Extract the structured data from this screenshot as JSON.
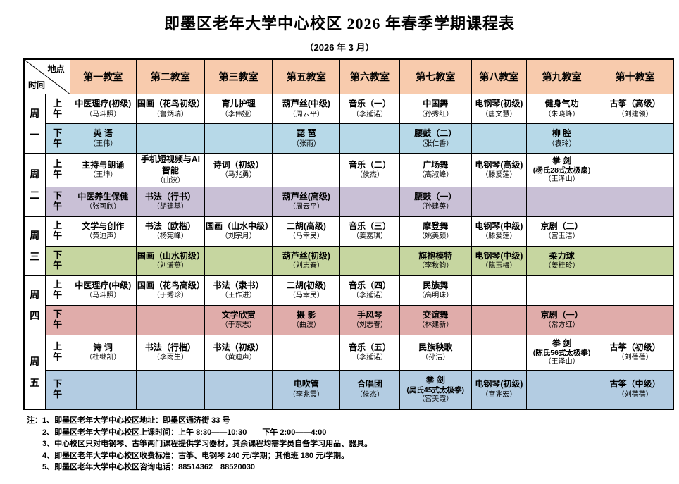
{
  "meta": {
    "title": "即墨区老年大学中心校区 2026 年春季学期课程表",
    "subtitle": "（2026 年 3 月）"
  },
  "corner": {
    "location": "地点",
    "time": "时间"
  },
  "colors": {
    "header": "#F8CBAD",
    "mon_pm": "#B7D9E8",
    "tue_pm": "#C9C0D6",
    "wed_pm": "#C6D6A0",
    "thu_pm": "#E0ACAA",
    "fri_pm": "#B3CCE2"
  },
  "classrooms": [
    "第一教室",
    "第二教室",
    "第三教室",
    "第五教室",
    "第六教室",
    "第七教室",
    "第八教室",
    "第九教室",
    "第十教室"
  ],
  "days": [
    {
      "label": "周一",
      "sessions": [
        {
          "time": "上午",
          "color": "#FFFFFF",
          "cells": [
            {
              "course": "中医理疗(初级)",
              "teacher": "（马斗照）"
            },
            {
              "course": "国画（花鸟初级）",
              "teacher": "（鲁炳瑞）"
            },
            {
              "course": "育儿护理",
              "teacher": "（李伟娅）"
            },
            {
              "course": "葫芦丝(中级)",
              "teacher": "（周云平）"
            },
            {
              "course": "音乐（一）",
              "teacher": "（李延诺）"
            },
            {
              "course": "中国舞",
              "teacher": "（孙秀红）"
            },
            {
              "course": "电钢琴(初级)",
              "teacher": "（唐文慧）"
            },
            {
              "course": "健身气功",
              "teacher": "（朱晓峰）"
            },
            {
              "course": "古筝（高级）",
              "teacher": "（刘建领）"
            }
          ]
        },
        {
          "time": "下午",
          "color": "#B7D9E8",
          "cells": [
            {
              "course": "英  语",
              "teacher": "（王伟）"
            },
            null,
            null,
            {
              "course": "琵  琶",
              "teacher": "（张雨）"
            },
            null,
            {
              "course": "腰鼓（二）",
              "teacher": "（张仁香）"
            },
            null,
            {
              "course": "柳  腔",
              "teacher": "（袁玲）"
            },
            null
          ]
        }
      ]
    },
    {
      "label": "周二",
      "sessions": [
        {
          "time": "上午",
          "color": "#FFFFFF",
          "cells": [
            {
              "course": "主持与朗诵",
              "teacher": "（王坤）"
            },
            {
              "course": "手机短视频与AI智能",
              "teacher": "（曲波）"
            },
            {
              "course": "诗词（初级）",
              "teacher": "（马兆勇）"
            },
            null,
            {
              "course": "音乐（二）",
              "teacher": "（侯杰）"
            },
            {
              "course": "广场舞",
              "teacher": "（高淑峰）"
            },
            {
              "course": "电钢琴(高级)",
              "teacher": "（滕爱莲）"
            },
            {
              "course": "拳  剑",
              "sub": "(杨氏28式太极扇)",
              "teacher": "（王泽山）"
            },
            null
          ]
        },
        {
          "time": "下午",
          "color": "#C9C0D6",
          "cells": [
            {
              "course": "中医养生保健",
              "teacher": "（张可欣）"
            },
            {
              "course": "书法（行书）",
              "teacher": "（胡建基）"
            },
            null,
            {
              "course": "葫芦丝(高级)",
              "teacher": "（周云平）"
            },
            null,
            {
              "course": "腰鼓（一）",
              "teacher": "（孙建英）"
            },
            null,
            null,
            null
          ]
        }
      ]
    },
    {
      "label": "周三",
      "sessions": [
        {
          "time": "上午",
          "color": "#FFFFFF",
          "cells": [
            {
              "course": "文学与创作",
              "teacher": "（黄迪声）"
            },
            {
              "course": "书法（欧楷）",
              "teacher": "（杨宪峰）"
            },
            {
              "course": "国画（山水中级）",
              "teacher": "（刘宗月）"
            },
            {
              "course": "二胡(高级)",
              "teacher": "（马幸民）"
            },
            {
              "course": "音乐（三）",
              "teacher": "（姜嘉琪）"
            },
            {
              "course": "摩登舞",
              "teacher": "（姚美颜）"
            },
            {
              "course": "电钢琴(中级)",
              "teacher": "（滕爱莲）"
            },
            {
              "course": "京剧（二）",
              "teacher": "（宫玉洁）"
            },
            null
          ]
        },
        {
          "time": "下午",
          "color": "#C6D6A0",
          "cells": [
            null,
            {
              "course": "国画（山水初级）",
              "teacher": "（刘潇燕）"
            },
            null,
            {
              "course": "葫芦丝(初级)",
              "teacher": "（刘志春）"
            },
            null,
            {
              "course": "旗袍模特",
              "teacher": "（李秋韵）"
            },
            {
              "course": "电钢琴(中级)",
              "teacher": "（陈玉梅）"
            },
            {
              "course": "柔力球",
              "teacher": "（姜桂珍）"
            },
            null
          ]
        }
      ]
    },
    {
      "label": "周四",
      "sessions": [
        {
          "time": "上午",
          "color": "#FFFFFF",
          "cells": [
            {
              "course": "中医理疗(中级)",
              "teacher": "（马斗照）"
            },
            {
              "course": "国画（花鸟高级）",
              "teacher": "（于秀珍）"
            },
            {
              "course": "书法（隶书）",
              "teacher": "（王作进）"
            },
            {
              "course": "二胡(初级)",
              "teacher": "（马幸民）"
            },
            {
              "course": "音乐（四）",
              "teacher": "（李延诺）"
            },
            {
              "course": "民族舞",
              "teacher": "（高明珠）"
            },
            null,
            null,
            null
          ]
        },
        {
          "time": "下午",
          "color": "#E0ACAA",
          "cells": [
            null,
            null,
            {
              "course": "文学欣赏",
              "teacher": "（于东志）"
            },
            {
              "course": "摄  影",
              "teacher": "（曲波）"
            },
            {
              "course": "手风琴",
              "teacher": "（刘志春）"
            },
            {
              "course": "交谊舞",
              "teacher": "（林建新）"
            },
            null,
            {
              "course": "京剧（一）",
              "teacher": "（常方红）"
            },
            null
          ]
        }
      ]
    },
    {
      "label": "周五",
      "sessions": [
        {
          "time": "上午",
          "color": "#FFFFFF",
          "cells": [
            {
              "course": "诗  词",
              "teacher": "（杜继凯）"
            },
            {
              "course": "书法（行楷）",
              "teacher": "（李雨生）"
            },
            {
              "course": "书法（初级）",
              "teacher": "（黄迪声）"
            },
            null,
            {
              "course": "音乐（五）",
              "teacher": "（李延诺）"
            },
            {
              "course": "民族秧歌",
              "teacher": "（孙洁）"
            },
            null,
            {
              "course": "拳  剑",
              "sub": "(陈氏56式太极拳)",
              "teacher": "（王泽山）"
            },
            {
              "course": "古筝（初级）",
              "teacher": "（刘蓓蓓）"
            }
          ]
        },
        {
          "time": "下午",
          "color": "#B3CCE2",
          "cells": [
            null,
            null,
            null,
            {
              "course": "电吹管",
              "teacher": "（李兆霞）"
            },
            {
              "course": "合唱团",
              "teacher": "（侯杰）"
            },
            {
              "course": "拳  剑",
              "sub": "(吴氏45式太极拳)",
              "teacher": "（宫美霞）"
            },
            {
              "course": "电钢琴(初级)",
              "teacher": "（宫兆宏）"
            },
            null,
            {
              "course": "古筝（中级）",
              "teacher": "（刘蓓蓓）"
            }
          ]
        }
      ]
    }
  ],
  "notes": [
    "注：1、即墨区老年大学中心校区地址：即墨区通济街 33 号",
    "2、即墨区老年大学中心校区上课时间：上午 8:30——10:30　　下午 2:00——4:00",
    "3、中心校区只对电钢琴、古筝两门课程提供学习器材，其余课程均需学员自备学习用品、器具。",
    "4、即墨区老年大学中心校区收费标准：古筝、电钢琴 240 元/学期；其他班 180 元/学期。",
    "5、即墨区老年大学中心校区咨询电话：88514362　88520030"
  ]
}
